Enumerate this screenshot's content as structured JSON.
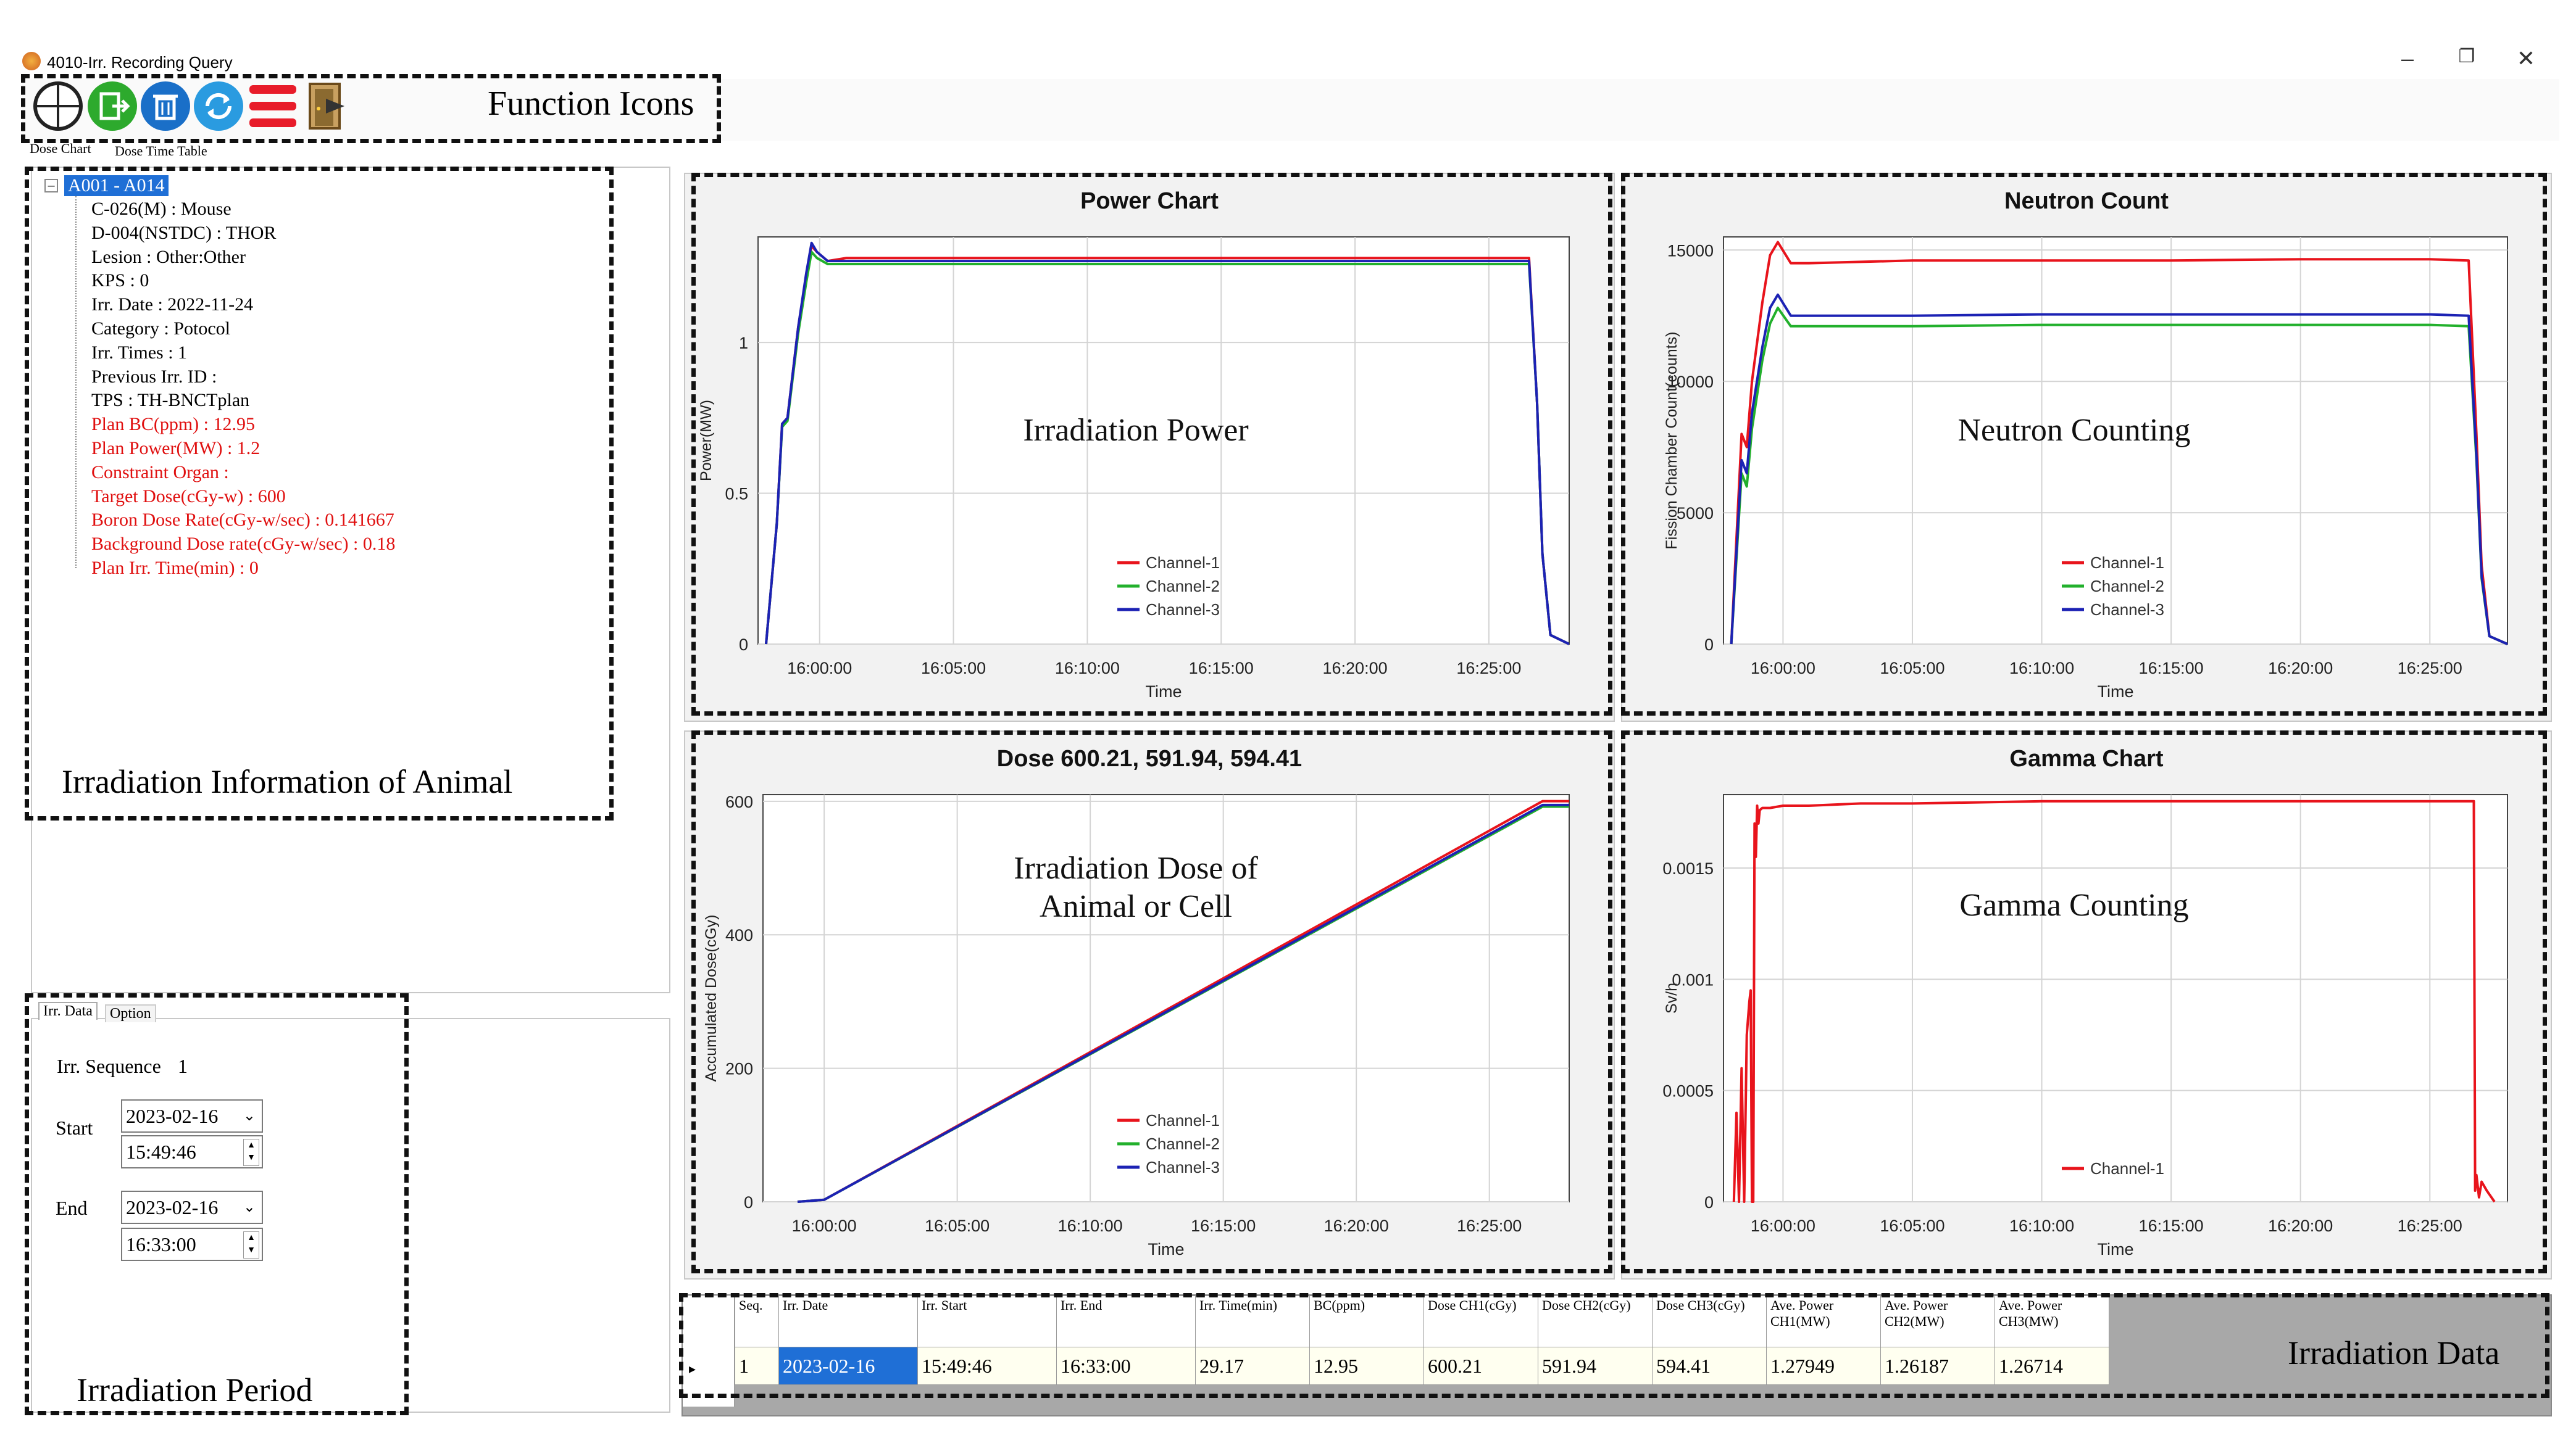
{
  "window": {
    "title": "4010-Irr. Recording Query",
    "minimize": "–",
    "restore": "❐",
    "close": "✕"
  },
  "toolbar": {
    "callout": "Function Icons",
    "icons": [
      "crosshair-icon",
      "export-icon",
      "trash-icon",
      "refresh-icon",
      "list-icon",
      "exit-door-icon"
    ],
    "tabs": [
      "Dose Chart",
      "Dose Time Table"
    ]
  },
  "info_tree": {
    "root": "A001 - A014",
    "items": [
      {
        "text": "C-026(M) : Mouse",
        "red": false
      },
      {
        "text": "D-004(NSTDC) : THOR",
        "red": false
      },
      {
        "text": "Lesion : Other:Other",
        "red": false
      },
      {
        "text": "KPS : 0",
        "red": false
      },
      {
        "text": "Irr. Date : 2022-11-24",
        "red": false
      },
      {
        "text": "Category : Potocol",
        "red": false
      },
      {
        "text": "Irr. Times : 1",
        "red": false
      },
      {
        "text": "Previous Irr. ID :",
        "red": false
      },
      {
        "text": "TPS : TH-BNCTplan",
        "red": false
      },
      {
        "text": "Plan BC(ppm) : 12.95",
        "red": true
      },
      {
        "text": "Plan Power(MW) : 1.2",
        "red": true
      },
      {
        "text": "Constraint Organ :",
        "red": true
      },
      {
        "text": "Target Dose(cGy-w) : 600",
        "red": true
      },
      {
        "text": "Boron Dose Rate(cGy-w/sec) : 0.141667",
        "red": true
      },
      {
        "text": "Background Dose rate(cGy-w/sec) : 0.18",
        "red": true
      },
      {
        "text": "Plan Irr. Time(min) : 0",
        "red": true
      }
    ],
    "callout": "Irradiation Information of Animal"
  },
  "period": {
    "tabs": [
      "Irr. Data",
      "Option"
    ],
    "sequence_label": "Irr. Sequence",
    "sequence_value": "1",
    "start_label": "Start",
    "start_date": "2023-02-16",
    "start_time": "15:49:46",
    "end_label": "End",
    "end_date": "2023-02-16",
    "end_time": "16:33:00",
    "callout": "Irradiation Period"
  },
  "colors": {
    "ch1": "#e8141c",
    "ch2": "#22b02c",
    "ch3": "#1c22b4",
    "selection": "#1f6fd6"
  },
  "charts": {
    "power": {
      "overlay": "Irradiation Power"
    },
    "neutron": {
      "overlay": "Neutron Counting"
    },
    "dose": {
      "overlay_line1": "Irradiation Dose of",
      "overlay_line2": "Animal or Cell"
    },
    "gamma": {
      "overlay": "Gamma Counting"
    }
  },
  "chart_data": [
    {
      "id": "power",
      "type": "line",
      "title": "Power Chart",
      "xlabel": "Time",
      "ylabel": "Power(MW)",
      "x_ticks": [
        "16:00:00",
        "16:05:00",
        "16:10:00",
        "16:15:00",
        "16:20:00",
        "16:25:00"
      ],
      "y_ticks": [
        0,
        0.5,
        1
      ],
      "ylim": [
        0,
        1.35
      ],
      "time_start_min": 0,
      "time_end_min": 28,
      "series": [
        {
          "name": "Channel-1",
          "x": [
            -2,
            -1.6,
            -1.4,
            -1.2,
            -0.8,
            -0.5,
            -0.3,
            -0.1,
            0.3,
            1,
            5,
            10,
            15,
            20,
            25,
            26.5,
            26.8,
            27,
            27.3,
            28
          ],
          "y": [
            0,
            0.4,
            0.73,
            0.75,
            1.05,
            1.22,
            1.32,
            1.3,
            1.27,
            1.28,
            1.28,
            1.28,
            1.28,
            1.28,
            1.28,
            1.28,
            0.8,
            0.3,
            0.03,
            0
          ]
        },
        {
          "name": "Channel-2",
          "x": [
            -2,
            -1.6,
            -1.4,
            -1.2,
            -0.8,
            -0.5,
            -0.3,
            -0.1,
            0.3,
            1,
            5,
            10,
            15,
            20,
            25,
            26.5,
            26.8,
            27,
            27.3,
            28
          ],
          "y": [
            0,
            0.4,
            0.72,
            0.74,
            1.03,
            1.2,
            1.3,
            1.28,
            1.26,
            1.26,
            1.26,
            1.26,
            1.26,
            1.26,
            1.26,
            1.26,
            0.8,
            0.3,
            0.03,
            0
          ]
        },
        {
          "name": "Channel-3",
          "x": [
            -2,
            -1.6,
            -1.4,
            -1.2,
            -0.8,
            -0.5,
            -0.3,
            -0.1,
            0.3,
            1,
            5,
            10,
            15,
            20,
            25,
            26.5,
            26.8,
            27,
            27.3,
            28
          ],
          "y": [
            0,
            0.4,
            0.73,
            0.75,
            1.05,
            1.23,
            1.33,
            1.3,
            1.27,
            1.27,
            1.27,
            1.27,
            1.27,
            1.27,
            1.27,
            1.27,
            0.8,
            0.3,
            0.03,
            0
          ]
        }
      ]
    },
    {
      "id": "neutron",
      "type": "line",
      "title": "Neutron Count",
      "xlabel": "Time",
      "ylabel": "Fission Chamber Count(counts)",
      "x_ticks": [
        "16:00:00",
        "16:05:00",
        "16:10:00",
        "16:15:00",
        "16:20:00",
        "16:25:00"
      ],
      "y_ticks": [
        0,
        5000,
        10000,
        15000
      ],
      "ylim": [
        0,
        15500
      ],
      "series": [
        {
          "name": "Channel-1",
          "x": [
            -2,
            -1.6,
            -1.4,
            -1.2,
            -0.8,
            -0.5,
            -0.2,
            0.3,
            1,
            5,
            10,
            15,
            20,
            25,
            26.5,
            26.8,
            27,
            27.3,
            28
          ],
          "y": [
            0,
            8000,
            7500,
            10000,
            13000,
            14800,
            15300,
            14500,
            14500,
            14600,
            14600,
            14600,
            14650,
            14650,
            14600,
            8000,
            3000,
            300,
            0
          ]
        },
        {
          "name": "Channel-2",
          "x": [
            -2,
            -1.6,
            -1.4,
            -1.2,
            -0.8,
            -0.5,
            -0.2,
            0.3,
            1,
            5,
            10,
            15,
            20,
            25,
            26.5,
            26.8,
            27,
            27.3,
            28
          ],
          "y": [
            0,
            6500,
            6000,
            8200,
            10800,
            12200,
            12800,
            12100,
            12100,
            12100,
            12150,
            12150,
            12150,
            12150,
            12100,
            7000,
            2500,
            300,
            0
          ]
        },
        {
          "name": "Channel-3",
          "x": [
            -2,
            -1.6,
            -1.4,
            -1.2,
            -0.8,
            -0.5,
            -0.2,
            0.3,
            1,
            5,
            10,
            15,
            20,
            25,
            26.5,
            26.8,
            27,
            27.3,
            28
          ],
          "y": [
            0,
            7000,
            6500,
            8800,
            11300,
            12800,
            13300,
            12500,
            12500,
            12500,
            12550,
            12550,
            12550,
            12550,
            12500,
            7200,
            2600,
            300,
            0
          ]
        }
      ]
    },
    {
      "id": "dose",
      "type": "line",
      "title": "Dose 600.21, 591.94, 594.41",
      "xlabel": "Time",
      "ylabel": "Accumulated Dose(cGy)",
      "x_ticks": [
        "16:00:00",
        "16:05:00",
        "16:10:00",
        "16:15:00",
        "16:20:00",
        "16:25:00"
      ],
      "y_ticks": [
        0,
        200,
        400,
        600
      ],
      "ylim": [
        0,
        610
      ],
      "series": [
        {
          "name": "Channel-1",
          "x": [
            -1,
            0,
            27,
            28
          ],
          "y": [
            0,
            3,
            600.21,
            600.21
          ]
        },
        {
          "name": "Channel-2",
          "x": [
            -1,
            0,
            27,
            28
          ],
          "y": [
            0,
            3,
            591.94,
            591.94
          ]
        },
        {
          "name": "Channel-3",
          "x": [
            -1,
            0,
            27,
            28
          ],
          "y": [
            0,
            3,
            594.41,
            594.41
          ]
        }
      ]
    },
    {
      "id": "gamma",
      "type": "line",
      "title": "Gamma Chart",
      "xlabel": "Time",
      "ylabel": "Sv/h",
      "x_ticks": [
        "16:00:00",
        "16:05:00",
        "16:10:00",
        "16:15:00",
        "16:20:00",
        "16:25:00"
      ],
      "y_ticks": [
        0,
        0.0005,
        0.001,
        0.0015
      ],
      "ylim": [
        0,
        0.00183
      ],
      "series": [
        {
          "name": "Channel-1",
          "x": [
            -1.9,
            -1.8,
            -1.7,
            -1.6,
            -1.5,
            -1.4,
            -1.3,
            -1.25,
            -1.2,
            -1.15,
            -1.1,
            -1.05,
            -1.0,
            -0.95,
            -0.9,
            -0.8,
            -0.5,
            0,
            1,
            3,
            5,
            10,
            15,
            20,
            25,
            26.5,
            26.7,
            26.75,
            26.8,
            26.9,
            27,
            27.2,
            27.5
          ],
          "y": [
            0,
            0.0004,
            0,
            0.0006,
            0,
            0.00075,
            0.0009,
            0.00095,
            0,
            0,
            0.0017,
            0.00155,
            0.00178,
            0.0017,
            0.00176,
            0.00177,
            0.00177,
            0.00178,
            0.00178,
            0.00179,
            0.00179,
            0.0018,
            0.0018,
            0.0018,
            0.0018,
            0.0018,
            0.0018,
            5e-05,
            0.00012,
            2e-05,
            9e-05,
            5e-05,
            0
          ]
        }
      ]
    }
  ],
  "table": {
    "callout": "Irradiation Data",
    "headers": [
      "Seq.",
      "Irr. Date",
      "Irr. Start",
      "Irr. End",
      "Irr. Time(min)",
      "BC(ppm)",
      "Dose CH1(cGy)",
      "Dose CH2(cGy)",
      "Dose CH3(cGy)",
      "Ave. Power CH1(MW)",
      "Ave. Power CH2(MW)",
      "Ave. Power CH3(MW)"
    ],
    "rows": [
      [
        "1",
        "2023-02-16",
        "15:49:46",
        "16:33:00",
        "29.17",
        "12.95",
        "600.21",
        "591.94",
        "594.41",
        "1.27949",
        "1.26187",
        "1.26714"
      ]
    ]
  }
}
